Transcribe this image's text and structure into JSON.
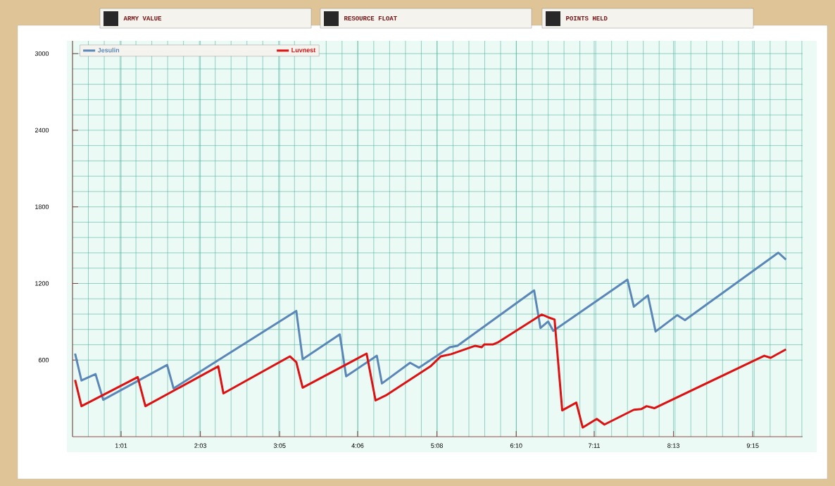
{
  "chart_data": {
    "type": "line",
    "annotations": [
      "ARMY VALUE",
      "RESOURCE FLOAT",
      "POINTS HELD"
    ],
    "x": [
      25,
      30,
      41,
      47,
      97,
      102,
      198,
      203,
      232,
      237,
      261,
      265,
      287,
      294,
      318,
      324,
      384,
      389,
      395,
      399,
      457,
      462,
      473,
      479,
      496,
      502,
      575,
      581
    ],
    "series": [
      {
        "name": "Jesulin",
        "color": "#5b86b8",
        "values": [
          651,
          440,
          490,
          289,
          562,
          378,
          985,
          607,
          801,
          473,
          634,
          417,
          579,
          540,
          701,
          712,
          1146,
          851,
          902,
          829,
          1230,
          1018,
          1107,
          824,
          952,
          913,
          1441,
          1386
        ]
      },
      {
        "name": "Luvnest",
        "color": "#dd1111",
        "x": [
          25,
          30,
          74,
          80,
          137,
          141,
          193,
          198,
          203,
          253,
          260,
          268,
          303,
          311,
          319,
          338,
          343,
          345,
          352,
          356,
          390,
          395,
          400,
          406,
          417,
          422,
          433,
          439,
          462,
          468,
          472,
          478,
          564,
          569,
          581
        ],
        "values": [
          445,
          239,
          467,
          239,
          551,
          339,
          629,
          584,
          384,
          651,
          284,
          323,
          551,
          629,
          646,
          712,
          701,
          723,
          723,
          740,
          957,
          935,
          918,
          206,
          267,
          72,
          139,
          95,
          211,
          217,
          239,
          223,
          634,
          618,
          684
        ]
      }
    ],
    "xlim": [
      23,
      594
    ],
    "ylim": [
      0,
      3100
    ],
    "xticks": [
      {
        "value": 61,
        "label": "1:01"
      },
      {
        "value": 123,
        "label": "2:03"
      },
      {
        "value": 185,
        "label": "3:05"
      },
      {
        "value": 246,
        "label": "4:06"
      },
      {
        "value": 308,
        "label": "5:08"
      },
      {
        "value": 370,
        "label": "6:10"
      },
      {
        "value": 431,
        "label": "7:11"
      },
      {
        "value": 493,
        "label": "8:13"
      },
      {
        "value": 555,
        "label": "9:15"
      }
    ],
    "yticks": [
      600,
      1200,
      1800,
      2400,
      3000
    ],
    "grid": true,
    "legend": "top left",
    "marker": "none",
    "line_style": "solid"
  }
}
